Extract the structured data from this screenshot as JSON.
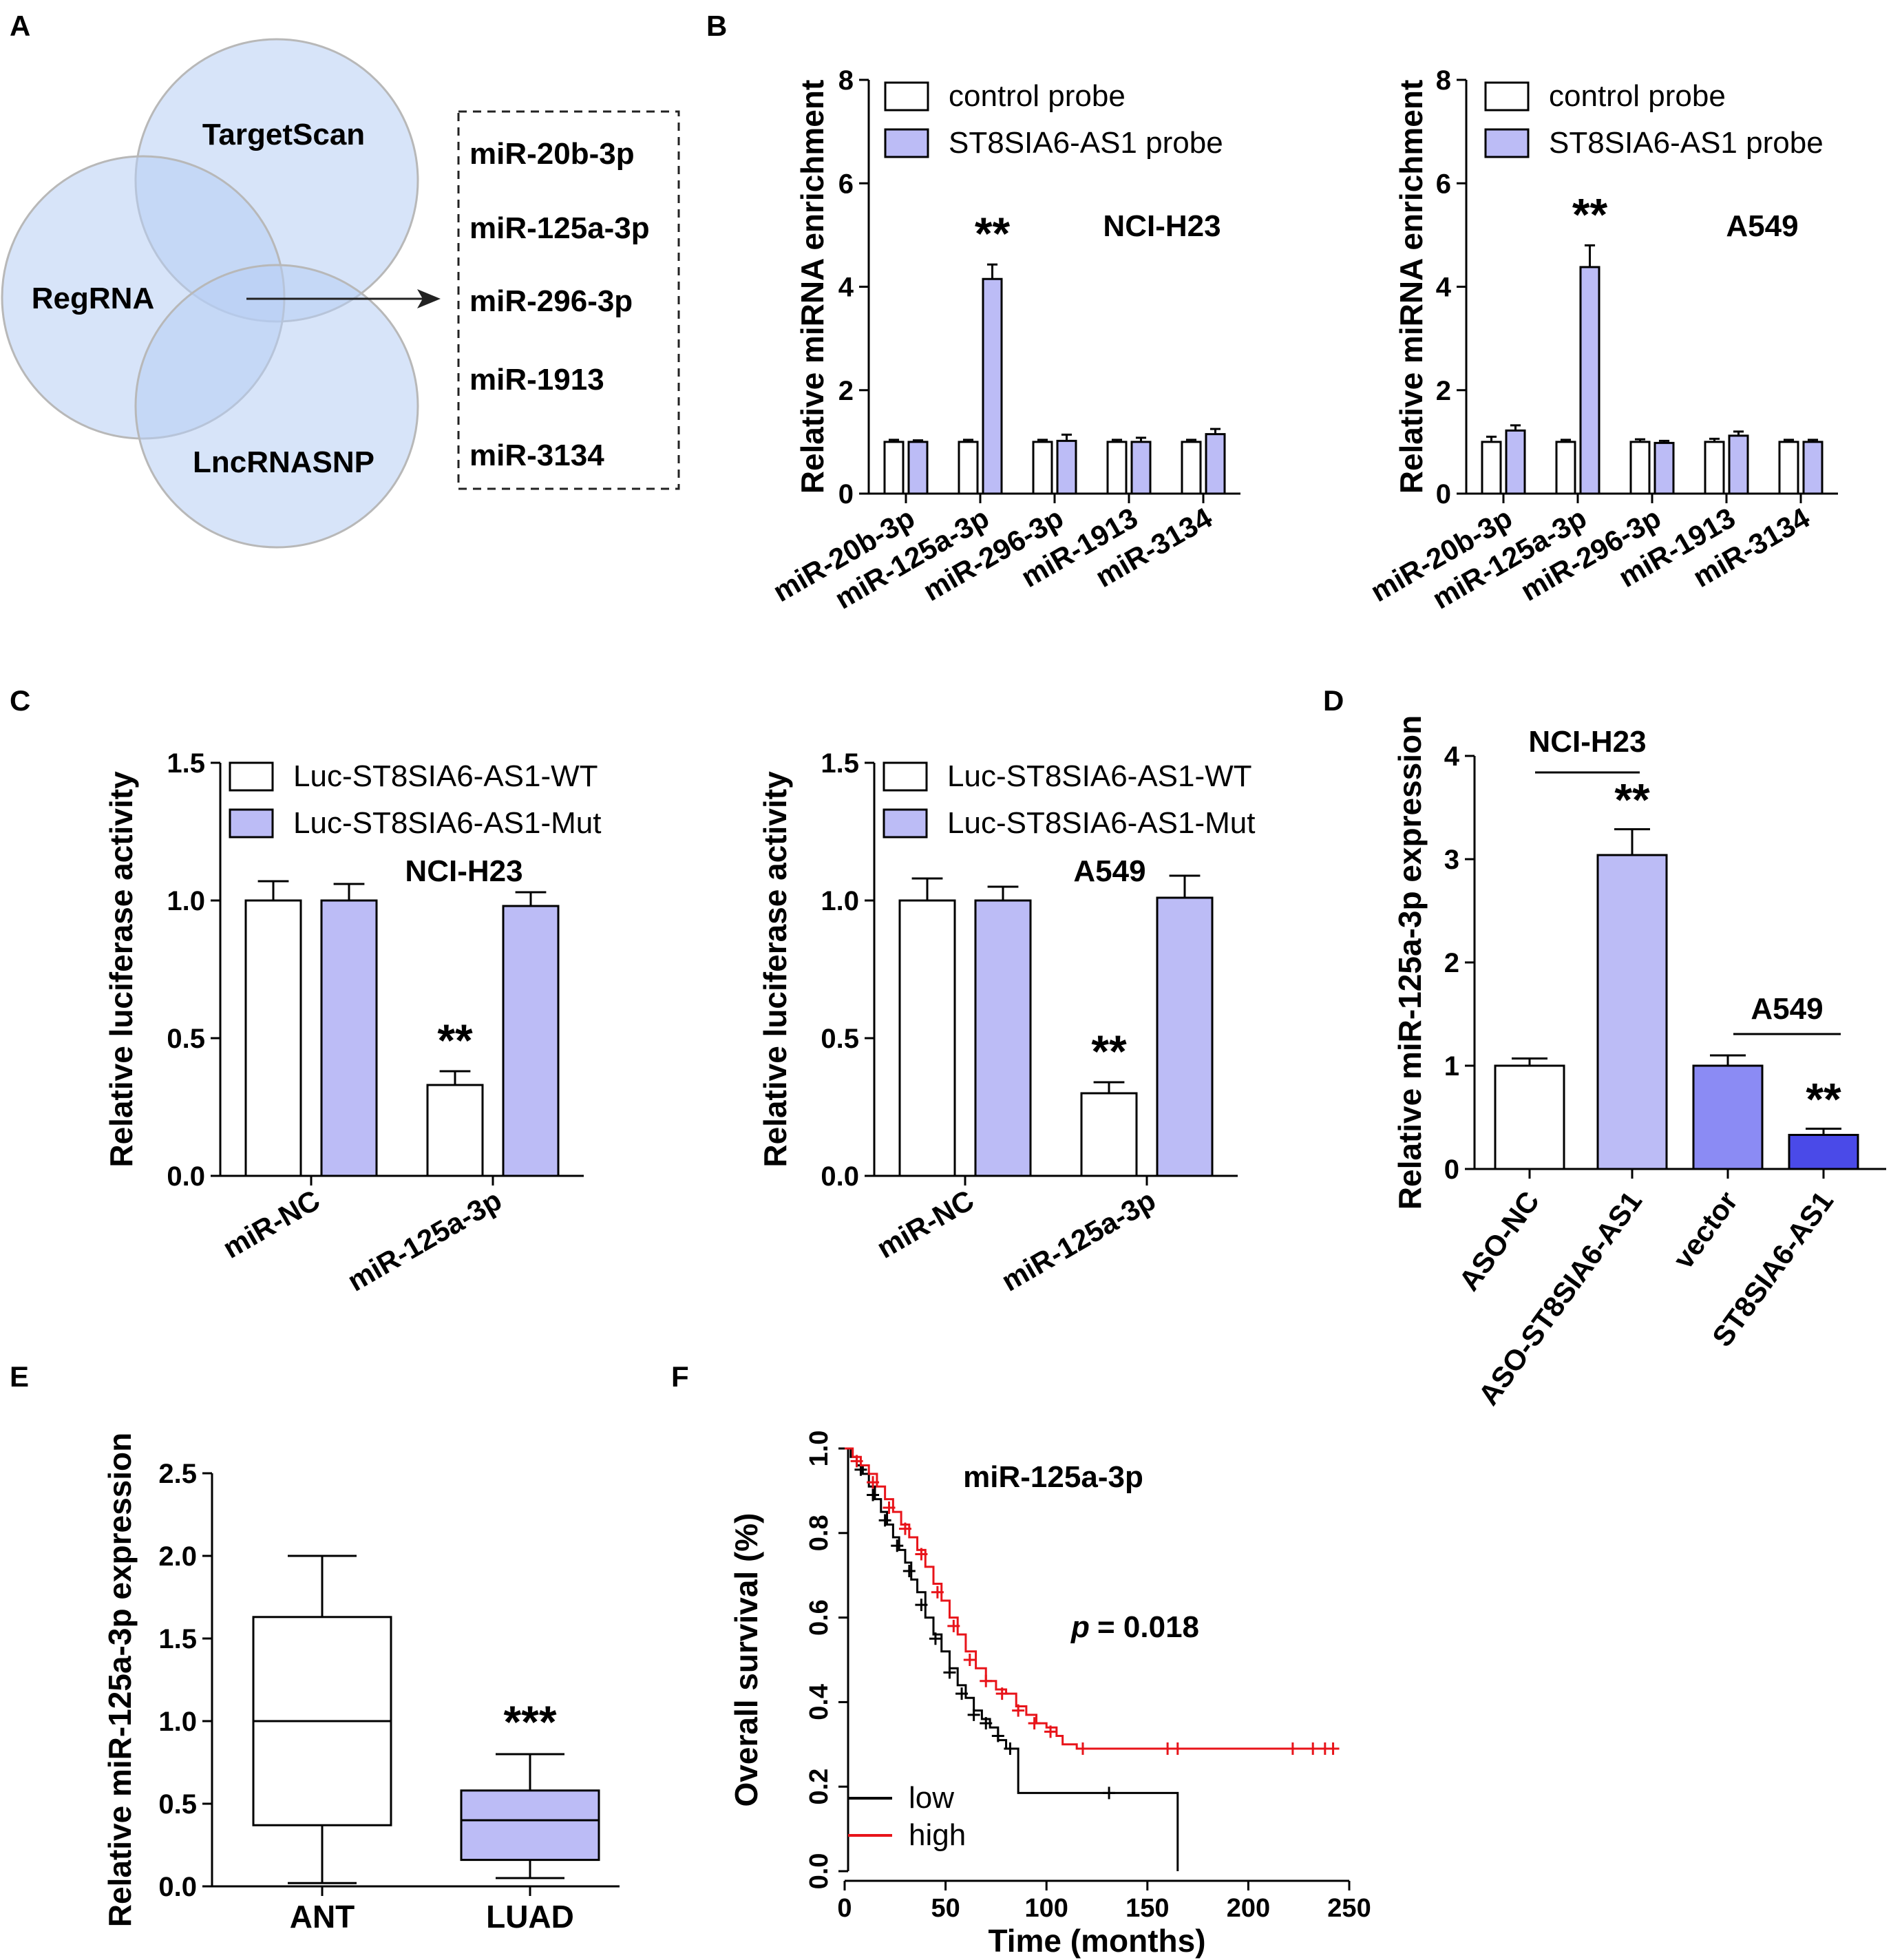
{
  "colors": {
    "light_purple": "#bcbcf6",
    "mid_purple": "#8b8bf4",
    "dark_blue": "#4a4ae8",
    "venn_fill": "#b6cdf4",
    "venn_stroke": "#b8b8b8",
    "km_low": "#000000",
    "km_high": "#e8141a"
  },
  "panels": {
    "A": {
      "letter": "A",
      "sets": [
        "TargetScan",
        "RegRNA",
        "LncRNASNP"
      ],
      "mirnas": [
        "miR-20b-3p",
        "miR-125a-3p",
        "miR-296-3p",
        "miR-1913",
        "miR-3134"
      ]
    },
    "B": {
      "letter": "B"
    },
    "C": {
      "letter": "C"
    },
    "D": {
      "letter": "D"
    },
    "E": {
      "letter": "E"
    },
    "F": {
      "letter": "F"
    }
  },
  "chart_data": [
    {
      "id": "B1",
      "type": "bar",
      "title": "NCI-H23",
      "ylabel": "Relative miRNA enrichment",
      "ylim": [
        0,
        8
      ],
      "yticks": [
        0,
        2,
        4,
        6,
        8
      ],
      "categories": [
        "miR-20b-3p",
        "miR-125a-3p",
        "miR-296-3p",
        "miR-1913",
        "miR-3134"
      ],
      "series": [
        {
          "name": "control probe",
          "values": [
            1.0,
            1.0,
            1.0,
            1.0,
            1.0
          ],
          "errors": [
            0.04,
            0.04,
            0.04,
            0.04,
            0.04
          ]
        },
        {
          "name": "ST8SIA6-AS1 probe",
          "values": [
            1.0,
            4.15,
            1.02,
            1.0,
            1.15
          ],
          "errors": [
            0.03,
            0.28,
            0.12,
            0.08,
            0.1
          ]
        }
      ],
      "annotations": [
        {
          "category_index": 1,
          "text": "**"
        }
      ]
    },
    {
      "id": "B2",
      "type": "bar",
      "title": "A549",
      "ylabel": "Relative miRNA enrichment",
      "ylim": [
        0,
        8
      ],
      "yticks": [
        0,
        2,
        4,
        6,
        8
      ],
      "categories": [
        "miR-20b-3p",
        "miR-125a-3p",
        "miR-296-3p",
        "miR-1913",
        "miR-3134"
      ],
      "series": [
        {
          "name": "control probe",
          "values": [
            1.0,
            1.0,
            1.0,
            1.0,
            1.0
          ],
          "errors": [
            0.1,
            0.04,
            0.05,
            0.06,
            0.04
          ]
        },
        {
          "name": "ST8SIA6-AS1 probe",
          "values": [
            1.22,
            4.38,
            0.98,
            1.12,
            1.0
          ],
          "errors": [
            0.1,
            0.42,
            0.04,
            0.08,
            0.04
          ]
        }
      ],
      "annotations": [
        {
          "category_index": 1,
          "text": "**"
        }
      ]
    },
    {
      "id": "C1",
      "type": "bar",
      "title": "NCI-H23",
      "ylabel": "Relative luciferase activity",
      "ylim": [
        0,
        1.5
      ],
      "yticks": [
        "0.0",
        "0.5",
        "1.0",
        "1.5"
      ],
      "categories": [
        "miR-NC",
        "miR-125a-3p"
      ],
      "series": [
        {
          "name": "Luc-ST8SIA6-AS1-WT",
          "values": [
            1.0,
            0.33
          ],
          "errors": [
            0.07,
            0.05
          ]
        },
        {
          "name": "Luc-ST8SIA6-AS1-Mut",
          "values": [
            1.0,
            0.98
          ],
          "errors": [
            0.06,
            0.05
          ]
        }
      ],
      "annotations": [
        {
          "category_index": 1,
          "text": "**"
        }
      ]
    },
    {
      "id": "C2",
      "type": "bar",
      "title": "A549",
      "ylabel": "Relative luciferase activity",
      "ylim": [
        0,
        1.5
      ],
      "yticks": [
        "0.0",
        "0.5",
        "1.0",
        "1.5"
      ],
      "categories": [
        "miR-NC",
        "miR-125a-3p"
      ],
      "series": [
        {
          "name": "Luc-ST8SIA6-AS1-WT",
          "values": [
            1.0,
            0.3
          ],
          "errors": [
            0.08,
            0.04
          ]
        },
        {
          "name": "Luc-ST8SIA6-AS1-Mut",
          "values": [
            1.0,
            1.01
          ],
          "errors": [
            0.05,
            0.08
          ]
        }
      ],
      "annotations": [
        {
          "category_index": 1,
          "text": "**"
        }
      ]
    },
    {
      "id": "D",
      "type": "bar",
      "ylabel": "Relative miR-125a-3p expression",
      "ylim": [
        0,
        4
      ],
      "yticks": [
        0,
        1,
        2,
        3,
        4
      ],
      "categories": [
        "ASO-NC",
        "ASO-ST8SIA6-AS1",
        "vector",
        "ST8SIA6-AS1"
      ],
      "values": [
        1.0,
        3.04,
        1.0,
        0.33
      ],
      "errors": [
        0.07,
        0.25,
        0.1,
        0.06
      ],
      "groups": [
        {
          "label": "NCI-H23",
          "indices": [
            0,
            1
          ]
        },
        {
          "label": "A549",
          "indices": [
            2,
            3
          ]
        }
      ],
      "annotations": [
        {
          "category_index": 1,
          "text": "**"
        },
        {
          "category_index": 3,
          "text": "**"
        }
      ]
    },
    {
      "id": "E",
      "type": "box",
      "ylabel": "Relative miR-125a-3p expression",
      "ylim": [
        0,
        2.5
      ],
      "yticks": [
        "0.0",
        "0.5",
        "1.0",
        "1.5",
        "2.0",
        "2.5"
      ],
      "categories": [
        "ANT",
        "LUAD"
      ],
      "boxes": [
        {
          "min": 0.02,
          "q1": 0.37,
          "median": 1.0,
          "q3": 1.63,
          "max": 2.0
        },
        {
          "min": 0.05,
          "q1": 0.16,
          "median": 0.4,
          "q3": 0.58,
          "max": 0.8
        }
      ],
      "annotations": [
        {
          "category_index": 1,
          "text": "***"
        }
      ]
    },
    {
      "id": "F",
      "type": "line",
      "title": "miR-125a-3p",
      "xlabel": "Time (months)",
      "ylabel": "Overall survival (%)",
      "xlim": [
        0,
        250
      ],
      "ylim": [
        0,
        1
      ],
      "xticks": [
        0,
        50,
        100,
        150,
        200,
        250
      ],
      "yticks": [
        "0.0",
        "0.2",
        "0.4",
        "0.6",
        "0.8",
        "1.0"
      ],
      "p_label": "p",
      "p_value": "= 0.018",
      "series": [
        {
          "name": "low",
          "x": [
            0,
            3,
            6,
            9,
            12,
            15,
            18,
            21,
            24,
            27,
            30,
            33,
            36,
            40,
            44,
            48,
            52,
            56,
            60,
            64,
            68,
            72,
            76,
            80,
            86,
            86,
            165,
            165
          ],
          "y": [
            1.0,
            0.98,
            0.96,
            0.94,
            0.91,
            0.88,
            0.85,
            0.82,
            0.79,
            0.76,
            0.73,
            0.69,
            0.66,
            0.6,
            0.56,
            0.52,
            0.48,
            0.44,
            0.41,
            0.38,
            0.36,
            0.34,
            0.31,
            0.29,
            0.28,
            0.185,
            0.185,
            0.0
          ],
          "censor_x": [
            8,
            14,
            20,
            26,
            32,
            38,
            45,
            52,
            58,
            64,
            70,
            76,
            82,
            131
          ],
          "censor_y": [
            0.95,
            0.89,
            0.83,
            0.77,
            0.71,
            0.63,
            0.55,
            0.47,
            0.42,
            0.37,
            0.35,
            0.32,
            0.29,
            0.185
          ]
        },
        {
          "name": "high",
          "x": [
            0,
            4,
            8,
            12,
            16,
            20,
            24,
            28,
            32,
            36,
            40,
            44,
            48,
            52,
            56,
            60,
            65,
            70,
            75,
            80,
            85,
            90,
            95,
            100,
            105,
            108,
            115,
            242
          ],
          "y": [
            1.0,
            0.98,
            0.96,
            0.94,
            0.91,
            0.88,
            0.85,
            0.82,
            0.79,
            0.76,
            0.72,
            0.68,
            0.64,
            0.6,
            0.56,
            0.52,
            0.48,
            0.45,
            0.43,
            0.42,
            0.39,
            0.37,
            0.35,
            0.34,
            0.32,
            0.3,
            0.29,
            0.29
          ],
          "censor_x": [
            6,
            14,
            22,
            30,
            38,
            46,
            54,
            62,
            70,
            78,
            86,
            94,
            102,
            118,
            160,
            165,
            222,
            232,
            238,
            242
          ],
          "censor_y": [
            0.97,
            0.92,
            0.86,
            0.81,
            0.75,
            0.66,
            0.58,
            0.5,
            0.45,
            0.42,
            0.38,
            0.35,
            0.33,
            0.29,
            0.29,
            0.29,
            0.29,
            0.29,
            0.29,
            0.29
          ]
        }
      ]
    }
  ]
}
